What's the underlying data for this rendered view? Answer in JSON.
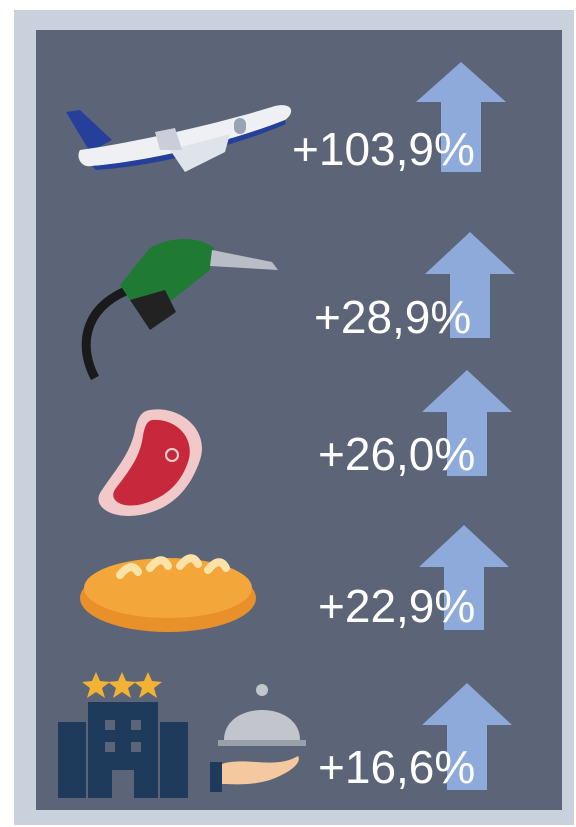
{
  "items": [
    {
      "label": "+103,9%"
    },
    {
      "label": "+28,9%"
    },
    {
      "label": "+26,0%"
    },
    {
      "label": "+22,9%"
    },
    {
      "label": "+16,6%"
    }
  ]
}
